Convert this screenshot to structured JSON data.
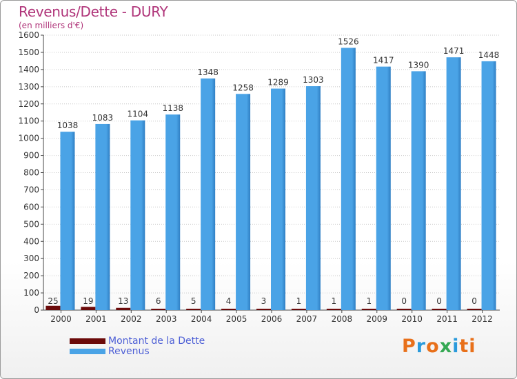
{
  "colors": {
    "debt": "#6b0a0a",
    "revenue": "#4aa3e6",
    "revenue_dark": "#2f7fc4",
    "title": "#b0357a",
    "legend_text": "#4d5fd6",
    "grid": "#c8c8c8",
    "axis": "#444444",
    "logo": [
      "#e8701a",
      "#2a9adb",
      "#e8701a",
      "#34a853",
      "#2a9adb",
      "#e8701a"
    ]
  },
  "logo": {
    "text": "Proxiti",
    "letters": [
      "P",
      "r",
      "o",
      "x",
      "i",
      "ti"
    ]
  },
  "chart_data": {
    "type": "bar",
    "title": "Revenus/Dette - DURY",
    "subtitle": "(en milliers d'€)",
    "xlabel": "",
    "ylabel": "",
    "ylim": [
      0,
      1600
    ],
    "ytick_step": 100,
    "yticks": [
      "0",
      "100",
      "200",
      "300",
      "400",
      "500",
      "600",
      "700",
      "800",
      "900",
      "1000",
      "1100",
      "1200",
      "1300",
      "1400",
      "1500",
      "1600"
    ],
    "grid": true,
    "legend_position": "bottom-left",
    "categories": [
      "2000",
      "2001",
      "2002",
      "2003",
      "2004",
      "2005",
      "2006",
      "2007",
      "2008",
      "2009",
      "2010",
      "2011",
      "2012"
    ],
    "series": [
      {
        "name": "Montant de la Dette",
        "values": [
          25,
          19,
          13,
          6,
          5,
          4,
          3,
          1,
          1,
          1,
          0,
          0,
          0
        ]
      },
      {
        "name": "Revenus",
        "values": [
          1038,
          1083,
          1104,
          1138,
          1348,
          1258,
          1289,
          1303,
          1526,
          1417,
          1390,
          1471,
          1448
        ]
      }
    ]
  }
}
